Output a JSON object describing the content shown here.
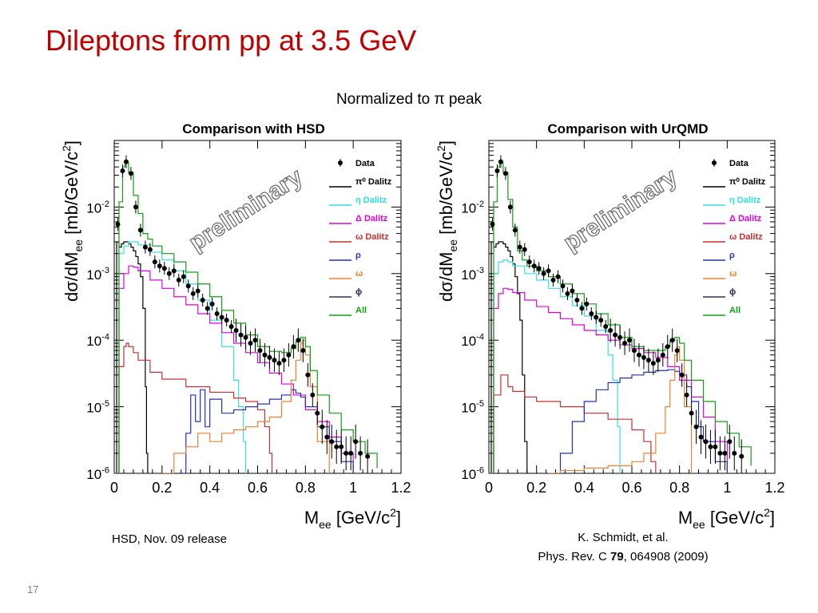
{
  "slide": {
    "title": "Dileptons from pp at 3.5 GeV",
    "subtitle": "Normalized to π peak",
    "page_number": "17"
  },
  "captions": {
    "left": "HSD, Nov. 09 release",
    "right_line1": "K. Schmidt, et al.",
    "right_line2_prefix": "Phys. Rev. C ",
    "right_line2_bold": "79",
    "right_line2_suffix": ", 064908 (2009)"
  },
  "chart_data": [
    {
      "type": "line",
      "title": "Comparison with HSD",
      "xlabel": "M_ee [GeV/c^2]",
      "ylabel": "dσ/dM_ee [mb/GeV/c^2]",
      "xlim": [
        0,
        1.2
      ],
      "ylim": [
        1e-06,
        0.1
      ],
      "yscale": "log",
      "x_ticks": [
        "0",
        "0.2",
        "0.4",
        "0.6",
        "0.8",
        "1",
        "1.2"
      ],
      "y_ticks": [
        "10^-6",
        "10^-5",
        "10^-4",
        "10^-3",
        "10^-2"
      ],
      "watermark": "preliminary",
      "legend_position": "top-right",
      "data_points": {
        "name": "Data",
        "x": [
          0.015,
          0.035,
          0.05,
          0.07,
          0.09,
          0.11,
          0.13,
          0.15,
          0.17,
          0.19,
          0.21,
          0.23,
          0.25,
          0.27,
          0.29,
          0.31,
          0.33,
          0.35,
          0.37,
          0.39,
          0.41,
          0.43,
          0.45,
          0.47,
          0.49,
          0.51,
          0.53,
          0.55,
          0.57,
          0.59,
          0.61,
          0.63,
          0.65,
          0.67,
          0.69,
          0.71,
          0.73,
          0.75,
          0.77,
          0.79,
          0.81,
          0.83,
          0.85,
          0.87,
          0.89,
          0.91,
          0.93,
          0.95,
          0.97,
          0.99,
          1.01,
          1.03,
          1.06
        ],
        "y": [
          0.0055,
          0.035,
          0.048,
          0.032,
          0.01,
          0.0045,
          0.0025,
          0.0023,
          0.0015,
          0.0013,
          0.0012,
          0.001,
          0.0011,
          0.0008,
          0.0009,
          0.00065,
          0.0005,
          0.00055,
          0.0004,
          0.0003,
          0.00035,
          0.00025,
          0.00022,
          0.0002,
          0.00016,
          0.00014,
          0.00012,
          0.00011,
          9e-05,
          0.0001,
          7e-05,
          6e-05,
          5.5e-05,
          5e-05,
          4.5e-05,
          5e-05,
          6e-05,
          8e-05,
          0.0001,
          7e-05,
          3e-05,
          1.5e-05,
          8e-06,
          5e-06,
          3.5e-06,
          3e-06,
          2.5e-06,
          2.5e-06,
          2e-06,
          2e-06,
          3e-06,
          2e-06,
          1.8e-06
        ]
      },
      "series": [
        {
          "name": "π⁰ Dalitz",
          "color": "#000000",
          "x": [
            0.0,
            0.01,
            0.02,
            0.03,
            0.04,
            0.05,
            0.06,
            0.07,
            0.08,
            0.09,
            0.1,
            0.11,
            0.12,
            0.13,
            0.135,
            0.14
          ],
          "y": [
            1e-06,
            0.003,
            0.0025,
            0.0028,
            0.003,
            0.003,
            0.0028,
            0.0025,
            0.0022,
            0.0018,
            0.0014,
            0.0009,
            0.0003,
            2e-05,
            2e-06,
            1e-06
          ]
        },
        {
          "name": "η Dalitz",
          "color": "#33e0e0",
          "x": [
            0.0,
            0.02,
            0.04,
            0.06,
            0.08,
            0.1,
            0.15,
            0.2,
            0.25,
            0.3,
            0.35,
            0.4,
            0.45,
            0.5,
            0.52,
            0.54,
            0.55
          ],
          "y": [
            1e-06,
            0.002,
            0.0026,
            0.003,
            0.003,
            0.0027,
            0.0021,
            0.0016,
            0.0011,
            0.0007,
            0.0004,
            0.0002,
            8e-05,
            2.5e-05,
            1e-05,
            3e-06,
            1e-06
          ]
        },
        {
          "name": "Δ Dalitz",
          "color": "#e000e0",
          "x": [
            0.0,
            0.02,
            0.04,
            0.06,
            0.08,
            0.1,
            0.15,
            0.2,
            0.25,
            0.3,
            0.35,
            0.4,
            0.45,
            0.5,
            0.55,
            0.6,
            0.65,
            0.7,
            0.75,
            0.8,
            0.85,
            0.9,
            0.95,
            1.0
          ],
          "y": [
            1e-06,
            0.0006,
            0.001,
            0.0013,
            0.00125,
            0.0011,
            0.0008,
            0.0006,
            0.00045,
            0.00034,
            0.00025,
            0.00018,
            0.00013,
            9e-05,
            6.5e-05,
            4.6e-05,
            3.2e-05,
            2.2e-05,
            1.5e-05,
            9e-06,
            6e-06,
            3.5e-06,
            2e-06,
            1.1e-06
          ]
        },
        {
          "name": "ω Dalitz",
          "color": "#c83030",
          "x": [
            0.0,
            0.02,
            0.04,
            0.05,
            0.06,
            0.08,
            0.1,
            0.15,
            0.2,
            0.3,
            0.4,
            0.5,
            0.55,
            0.6,
            0.63,
            0.65,
            0.66
          ],
          "y": [
            1e-06,
            4e-05,
            8e-05,
            9e-05,
            8e-05,
            6.5e-05,
            5e-05,
            3.3e-05,
            2.6e-05,
            2e-05,
            1.65e-05,
            1.35e-05,
            1.2e-05,
            9e-06,
            5e-06,
            2e-06,
            1e-06
          ]
        },
        {
          "name": "ρ",
          "color": "#2030c0",
          "x": [
            0.28,
            0.3,
            0.32,
            0.34,
            0.36,
            0.38,
            0.4,
            0.45,
            0.5,
            0.55,
            0.6,
            0.65,
            0.7,
            0.74,
            0.76,
            0.78,
            0.8,
            0.85,
            0.9,
            0.95,
            1.0
          ],
          "y": [
            1e-06,
            4e-06,
            1.5e-05,
            6e-06,
            1.8e-05,
            5e-06,
            1.3e-05,
            8e-06,
            9e-06,
            1e-05,
            1.1e-05,
            1.3e-05,
            1.5e-05,
            1.8e-05,
            1.6e-05,
            1.4e-05,
            1e-05,
            5e-06,
            3e-06,
            1.5e-06,
            1e-06
          ]
        },
        {
          "name": "ω",
          "color": "#f08030",
          "x": [
            0.2,
            0.25,
            0.3,
            0.35,
            0.4,
            0.45,
            0.5,
            0.55,
            0.6,
            0.65,
            0.7,
            0.74,
            0.76,
            0.78,
            0.79,
            0.8,
            0.82,
            0.85,
            0.9
          ],
          "y": [
            1e-06,
            2e-06,
            2.5e-06,
            4e-06,
            3e-06,
            4e-06,
            4.5e-06,
            5e-06,
            6e-06,
            7e-06,
            1.2e-05,
            2.5e-05,
            5e-05,
            9e-05,
            0.0001,
            6e-05,
            2e-05,
            3e-06,
            1e-06
          ]
        },
        {
          "name": "ϕ",
          "color": "#303060",
          "x": [],
          "y": []
        },
        {
          "name": "All",
          "color": "#10a010",
          "x": [
            0.0,
            0.02,
            0.035,
            0.045,
            0.06,
            0.08,
            0.1,
            0.12,
            0.14,
            0.16,
            0.2,
            0.25,
            0.3,
            0.35,
            0.4,
            0.45,
            0.5,
            0.55,
            0.6,
            0.65,
            0.7,
            0.74,
            0.76,
            0.78,
            0.8,
            0.82,
            0.85,
            0.9,
            0.95,
            1.0,
            1.05,
            1.1
          ],
          "y": [
            1e-06,
            0.012,
            0.04,
            0.046,
            0.033,
            0.015,
            0.008,
            0.004,
            0.0033,
            0.0026,
            0.002,
            0.0015,
            0.00105,
            0.0007,
            0.00045,
            0.00028,
            0.00018,
            0.00012,
            8e-05,
            6.8e-05,
            6.5e-05,
            7.5e-05,
            9.5e-05,
            0.00011,
            8e-05,
            3.5e-05,
            1.5e-05,
            8e-06,
            4.5e-06,
            3e-06,
            2e-06,
            1.2e-06
          ]
        }
      ]
    },
    {
      "type": "line",
      "title": "Comparison with UrQMD",
      "xlabel": "M_ee [GeV/c^2]",
      "ylabel": "dσ/dM_ee [mb/GeV/c^2]",
      "xlim": [
        0,
        1.2
      ],
      "ylim": [
        1e-06,
        0.1
      ],
      "yscale": "log",
      "x_ticks": [
        "0",
        "0.2",
        "0.4",
        "0.6",
        "0.8",
        "1",
        "1.2"
      ],
      "y_ticks": [
        "10^-6",
        "10^-5",
        "10^-4",
        "10^-3",
        "10^-2"
      ],
      "watermark": "preliminary",
      "legend_position": "top-right",
      "data_points": {
        "name": "Data",
        "x": [
          0.015,
          0.035,
          0.05,
          0.07,
          0.09,
          0.11,
          0.13,
          0.15,
          0.17,
          0.19,
          0.21,
          0.23,
          0.25,
          0.27,
          0.29,
          0.31,
          0.33,
          0.35,
          0.37,
          0.39,
          0.41,
          0.43,
          0.45,
          0.47,
          0.49,
          0.51,
          0.53,
          0.55,
          0.57,
          0.59,
          0.61,
          0.63,
          0.65,
          0.67,
          0.69,
          0.71,
          0.73,
          0.75,
          0.77,
          0.79,
          0.81,
          0.83,
          0.85,
          0.87,
          0.89,
          0.91,
          0.93,
          0.95,
          0.97,
          0.99,
          1.01,
          1.03,
          1.06
        ],
        "y": [
          0.0055,
          0.035,
          0.048,
          0.032,
          0.01,
          0.0045,
          0.0025,
          0.0023,
          0.0015,
          0.0013,
          0.0012,
          0.001,
          0.0011,
          0.0008,
          0.0009,
          0.00065,
          0.0005,
          0.00055,
          0.0004,
          0.0003,
          0.00035,
          0.00025,
          0.00022,
          0.0002,
          0.00016,
          0.00014,
          0.00012,
          0.00011,
          9e-05,
          0.0001,
          7e-05,
          6e-05,
          5.5e-05,
          5e-05,
          4.5e-05,
          5e-05,
          6e-05,
          8e-05,
          0.0001,
          7e-05,
          3e-05,
          1.5e-05,
          8e-06,
          5e-06,
          3.5e-06,
          3e-06,
          2.5e-06,
          2.5e-06,
          2e-06,
          2e-06,
          3e-06,
          2e-06,
          1.8e-06
        ]
      },
      "series": [
        {
          "name": "π⁰ Dalitz",
          "color": "#000000",
          "x": [
            0.0,
            0.01,
            0.02,
            0.03,
            0.04,
            0.05,
            0.06,
            0.07,
            0.08,
            0.09,
            0.1,
            0.11,
            0.12,
            0.13,
            0.14,
            0.15,
            0.16
          ],
          "y": [
            1e-06,
            0.003,
            0.0025,
            0.0028,
            0.003,
            0.003,
            0.0028,
            0.0025,
            0.0022,
            0.0018,
            0.0014,
            0.0009,
            0.0005,
            0.0002,
            3e-05,
            3e-06,
            1e-06
          ]
        },
        {
          "name": "η Dalitz",
          "color": "#33e0e0",
          "x": [
            0.0,
            0.02,
            0.04,
            0.06,
            0.08,
            0.1,
            0.15,
            0.2,
            0.25,
            0.3,
            0.35,
            0.4,
            0.45,
            0.5,
            0.52,
            0.54,
            0.55
          ],
          "y": [
            1e-06,
            0.001,
            0.0015,
            0.0016,
            0.0015,
            0.0013,
            0.001,
            0.0008,
            0.0006,
            0.00045,
            0.00033,
            0.00023,
            0.00014,
            6e-05,
            2.5e-05,
            5e-06,
            1e-06
          ]
        },
        {
          "name": "Δ Dalitz",
          "color": "#e000e0",
          "x": [
            0.0,
            0.02,
            0.04,
            0.06,
            0.08,
            0.1,
            0.15,
            0.2,
            0.25,
            0.3,
            0.35,
            0.4,
            0.45,
            0.5,
            0.55,
            0.6,
            0.65,
            0.7,
            0.75,
            0.8,
            0.85,
            0.9,
            0.95,
            1.0
          ],
          "y": [
            1e-06,
            0.0003,
            0.0005,
            0.0006,
            0.00058,
            0.00052,
            0.0004,
            0.00032,
            0.00026,
            0.00021,
            0.00017,
            0.00014,
            0.00012,
            0.0001,
            8.5e-05,
            7.5e-05,
            6.5e-05,
            5.5e-05,
            4e-05,
            2.5e-05,
            1.4e-05,
            7e-06,
            3e-06,
            1.2e-06
          ]
        },
        {
          "name": "ω Dalitz",
          "color": "#c83030",
          "x": [
            0.0,
            0.02,
            0.05,
            0.08,
            0.1,
            0.15,
            0.2,
            0.3,
            0.4,
            0.5,
            0.6,
            0.65,
            0.68,
            0.7
          ],
          "y": [
            1e-06,
            1.5e-05,
            3e-05,
            2e-05,
            1.7e-05,
            1.4e-05,
            1.2e-05,
            1e-05,
            8e-06,
            6.5e-06,
            4.5e-06,
            3e-06,
            1.5e-06,
            1e-06
          ]
        },
        {
          "name": "ρ",
          "color": "#2030c0",
          "x": [
            0.28,
            0.3,
            0.35,
            0.4,
            0.45,
            0.5,
            0.55,
            0.6,
            0.65,
            0.7,
            0.75,
            0.78,
            0.8,
            0.83,
            0.85,
            0.88,
            0.9,
            0.95,
            1.0
          ],
          "y": [
            1e-06,
            2e-06,
            6e-06,
            1.2e-05,
            1.8e-05,
            2.3e-05,
            2.7e-05,
            3e-05,
            3.3e-05,
            3.5e-05,
            3.6e-05,
            3.4e-05,
            3e-05,
            2e-05,
            1.2e-05,
            5e-06,
            3e-06,
            1.5e-06,
            1e-06
          ]
        },
        {
          "name": "ω",
          "color": "#f08030",
          "x": [
            0.25,
            0.3,
            0.4,
            0.5,
            0.6,
            0.65,
            0.7,
            0.74,
            0.76,
            0.78,
            0.79,
            0.8,
            0.82,
            0.85
          ],
          "y": [
            1e-06,
            1.1e-06,
            1.2e-06,
            1.3e-06,
            1.5e-06,
            2e-06,
            4e-06,
            1e-05,
            2.5e-05,
            6e-05,
            8e-05,
            5e-05,
            1e-05,
            1e-06
          ]
        },
        {
          "name": "ϕ",
          "color": "#303060",
          "x": [],
          "y": []
        },
        {
          "name": "All",
          "color": "#10a010",
          "x": [
            0.0,
            0.02,
            0.035,
            0.045,
            0.06,
            0.08,
            0.1,
            0.12,
            0.14,
            0.16,
            0.2,
            0.25,
            0.3,
            0.35,
            0.4,
            0.45,
            0.5,
            0.55,
            0.6,
            0.65,
            0.7,
            0.74,
            0.76,
            0.78,
            0.8,
            0.82,
            0.85,
            0.9,
            0.95,
            1.0,
            1.05,
            1.1
          ],
          "y": [
            1e-06,
            0.012,
            0.04,
            0.046,
            0.033,
            0.013,
            0.005,
            0.0022,
            0.0016,
            0.0013,
            0.0011,
            0.0009,
            0.0007,
            0.0005,
            0.00035,
            0.00025,
            0.00017,
            0.00011,
            8e-05,
            7e-05,
            7e-05,
            8e-05,
            0.0001,
            0.00011,
            9e-05,
            5e-05,
            2.5e-05,
            1.2e-05,
            6e-06,
            4e-06,
            2.5e-06,
            1.3e-06
          ]
        }
      ]
    }
  ]
}
